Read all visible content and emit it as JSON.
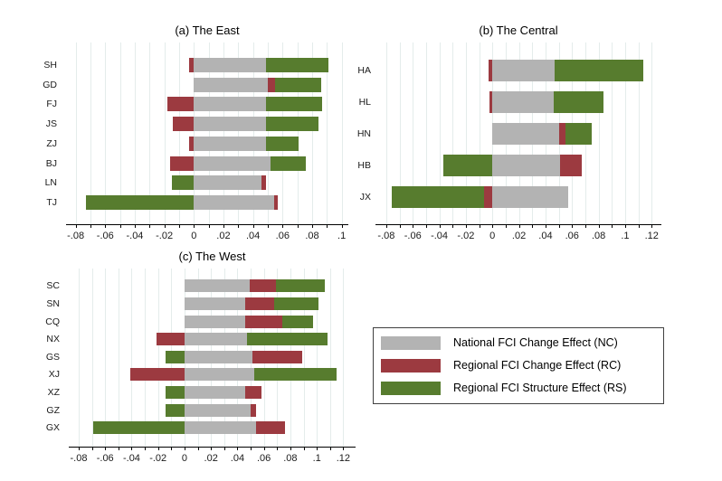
{
  "figure": {
    "background": "#ffffff"
  },
  "colors": {
    "nc": "#b3b3b3",
    "rc": "#9c3a40",
    "rs": "#577c2e",
    "gridline": "#e4eceb",
    "axis": "#000000",
    "text": "#1a1a1a"
  },
  "legend": {
    "entries": [
      {
        "key": "nc",
        "label": "National FCI Change Effect (NC)"
      },
      {
        "key": "rc",
        "label": "Regional FCI Change Effect (RC)"
      },
      {
        "key": "rs",
        "label": "Regional FCI Structure Effect (RS)"
      }
    ]
  },
  "chart_data": [
    {
      "id": "east",
      "type": "bar",
      "orientation": "horizontal-stacked",
      "title": "(a) The East",
      "categories": [
        "SH",
        "GD",
        "FJ",
        "JS",
        "ZJ",
        "BJ",
        "LN",
        "TJ"
      ],
      "series": [
        {
          "key": "nc",
          "name": "National FCI Change Effect (NC)",
          "values": [
            0.049,
            0.05,
            0.049,
            0.049,
            0.049,
            0.052,
            0.046,
            0.054
          ]
        },
        {
          "key": "rc",
          "name": "Regional FCI Change Effect (RC)",
          "values": [
            -0.003,
            0.005,
            -0.018,
            -0.014,
            -0.003,
            -0.016,
            0.003,
            0.003
          ]
        },
        {
          "key": "rs",
          "name": "Regional FCI Structure Effect (RS)",
          "values": [
            0.042,
            0.031,
            0.038,
            0.035,
            0.022,
            0.024,
            -0.015,
            -0.073
          ]
        }
      ],
      "xlim": [
        -0.0865,
        0.1045
      ],
      "x_minor_step": 0.01,
      "grid": true,
      "x_ticks": [
        {
          "v": -0.08,
          "label": "-.08"
        },
        {
          "v": -0.06,
          "label": "-.06"
        },
        {
          "v": -0.04,
          "label": "-.04"
        },
        {
          "v": -0.02,
          "label": "-.02"
        },
        {
          "v": 0,
          "label": "0"
        },
        {
          "v": 0.02,
          "label": ".02"
        },
        {
          "v": 0.04,
          "label": ".04"
        },
        {
          "v": 0.06,
          "label": ".06"
        },
        {
          "v": 0.08,
          "label": ".08"
        },
        {
          "v": 0.1,
          "label": ".1"
        }
      ]
    },
    {
      "id": "central",
      "type": "bar",
      "orientation": "horizontal-stacked",
      "title": "(b) The Central",
      "categories": [
        "HA",
        "HL",
        "HN",
        "HB",
        "JX"
      ],
      "series": [
        {
          "key": "nc",
          "name": "National FCI Change Effect (NC)",
          "values": [
            0.047,
            0.046,
            0.05,
            0.051,
            0.057
          ]
        },
        {
          "key": "rc",
          "name": "Regional FCI Change Effect (RC)",
          "values": [
            -0.003,
            -0.002,
            0.005,
            0.016,
            -0.006
          ]
        },
        {
          "key": "rs",
          "name": "Regional FCI Structure Effect (RS)",
          "values": [
            0.067,
            0.038,
            0.02,
            -0.037,
            -0.07
          ]
        }
      ],
      "xlim": [
        -0.0881,
        0.1273
      ],
      "x_minor_step": 0.01,
      "grid": true,
      "x_ticks": [
        {
          "v": -0.08,
          "label": "-.08"
        },
        {
          "v": -0.06,
          "label": "-.06"
        },
        {
          "v": -0.04,
          "label": "-.04"
        },
        {
          "v": -0.02,
          "label": "-.02"
        },
        {
          "v": 0,
          "label": "0"
        },
        {
          "v": 0.02,
          "label": ".02"
        },
        {
          "v": 0.04,
          "label": ".04"
        },
        {
          "v": 0.06,
          "label": ".06"
        },
        {
          "v": 0.08,
          "label": ".08"
        },
        {
          "v": 0.1,
          "label": ".1"
        },
        {
          "v": 0.12,
          "label": ".12"
        }
      ]
    },
    {
      "id": "west",
      "type": "bar",
      "orientation": "horizontal-stacked",
      "title": "(c) The West",
      "categories": [
        "SC",
        "SN",
        "CQ",
        "NX",
        "GS",
        "XJ",
        "XZ",
        "GZ",
        "GX"
      ],
      "series": [
        {
          "key": "nc",
          "name": "National FCI Change Effect (NC)",
          "values": [
            0.049,
            0.046,
            0.046,
            0.047,
            0.051,
            0.053,
            0.046,
            0.05,
            0.054
          ]
        },
        {
          "key": "rc",
          "name": "Regional FCI Change Effect (RC)",
          "values": [
            0.02,
            0.022,
            0.028,
            -0.021,
            0.038,
            -0.041,
            0.012,
            0.004,
            0.022
          ]
        },
        {
          "key": "rs",
          "name": "Regional FCI Structure Effect (RS)",
          "values": [
            0.037,
            0.033,
            0.023,
            0.061,
            -0.014,
            0.062,
            -0.014,
            -0.014,
            -0.069
          ]
        }
      ],
      "xlim": [
        -0.0875,
        0.1293
      ],
      "x_minor_step": 0.01,
      "grid": true,
      "x_ticks": [
        {
          "v": -0.08,
          "label": "-.08"
        },
        {
          "v": -0.06,
          "label": "-.06"
        },
        {
          "v": -0.04,
          "label": "-.04"
        },
        {
          "v": -0.02,
          "label": "-.02"
        },
        {
          "v": 0,
          "label": "0"
        },
        {
          "v": 0.02,
          "label": ".02"
        },
        {
          "v": 0.04,
          "label": ".04"
        },
        {
          "v": 0.06,
          "label": ".06"
        },
        {
          "v": 0.08,
          "label": ".08"
        },
        {
          "v": 0.1,
          "label": ".1"
        },
        {
          "v": 0.12,
          "label": ".12"
        }
      ]
    }
  ]
}
